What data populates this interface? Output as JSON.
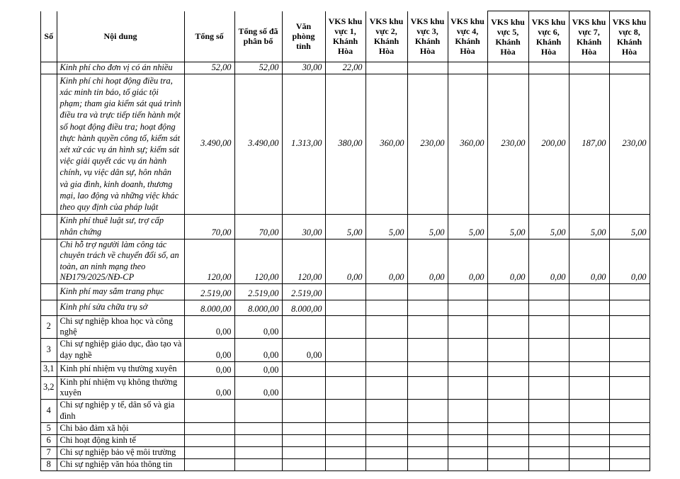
{
  "table": {
    "columns": [
      {
        "key": "so",
        "label": "Số"
      },
      {
        "key": "noi-dung",
        "label": "Nội dung"
      },
      {
        "key": "tong-so",
        "label": "Tổng số"
      },
      {
        "key": "tong-so-da-phan-bo",
        "label": "Tổng số đã\nphân bổ"
      },
      {
        "key": "van-phong-tinh",
        "label": "Văn phòng\ntỉnh"
      },
      {
        "key": "vks-khu-vuc-1",
        "label": "VKS khu\nvực 1,\nKhánh\nHòa"
      },
      {
        "key": "vks-khu-vuc-2",
        "label": "VKS khu\nvực 2,\nKhánh\nHòa"
      },
      {
        "key": "vks-khu-vuc-3",
        "label": "VKS khu\nvực 3,\nKhánh\nHòa"
      },
      {
        "key": "vks-khu-vuc-4",
        "label": "VKS khu\nvực 4,\nKhánh Hòa"
      },
      {
        "key": "vks-khu-vuc-5",
        "label": "VKS khu\nvực 5,\nKhánh\nHòa"
      },
      {
        "key": "vks-khu-vuc-6",
        "label": "VKS khu\nvực 6,\nKhánh\nHòa"
      },
      {
        "key": "vks-khu-vuc-7",
        "label": "VKS khu\nvực 7,\nKhánh\nHòa"
      },
      {
        "key": "vks-khu-vuc-8",
        "label": "VKS khu\nvực 8,\nKhánh\nHòa"
      }
    ],
    "rows": [
      {
        "so": "",
        "content": "Kinh phí cho đơn vị có án nhiều",
        "values": [
          "52,00",
          "52,00",
          "30,00",
          "22,00",
          "",
          "",
          "",
          "",
          "",
          "",
          ""
        ]
      },
      {
        "so": "",
        "content": "Kinh phí chi hoạt động điều tra, xác minh tin báo, tố giác tội phạm; tham gia kiểm sát quá trình điều tra và trực tiếp tiến hành một số hoạt động điều tra; hoạt động thực hành quyền công tố, kiểm sát xét xử các vụ án hình sự; kiểm sát việc giải quyết các vụ án hành chính, vụ việc dân sự, hôn nhân và gia đình, kinh doanh, thương mại, lao động và những việc khác theo quy định của pháp luật",
        "values": [
          "3.490,00",
          "3.490,00",
          "1.313,00",
          "380,00",
          "360,00",
          "230,00",
          "360,00",
          "230,00",
          "200,00",
          "187,00",
          "230,00"
        ]
      },
      {
        "so": "",
        "content": "Kinh phí thuê luật sư, trợ cấp nhân chứng",
        "values": [
          "70,00",
          "70,00",
          "30,00",
          "5,00",
          "5,00",
          "5,00",
          "5,00",
          "5,00",
          "5,00",
          "5,00",
          "5,00"
        ]
      },
      {
        "so": "",
        "content": "Chi hỗ trợ người làm công tác chuyên trách về chuyển đổi số, an toàn, an ninh mạng theo NĐ179/2025/NĐ-CP",
        "values": [
          "120,00",
          "120,00",
          "120,00",
          "0,00",
          "0,00",
          "0,00",
          "0,00",
          "0,00",
          "0,00",
          "0,00",
          "0,00"
        ]
      },
      {
        "so": "",
        "content": "Kinh phí may sắm trang phục",
        "values": [
          "2.519,00",
          "2.519,00",
          "2.519,00",
          "",
          "",
          "",
          "",
          "",
          "",
          "",
          ""
        ]
      },
      {
        "so": "",
        "content": "Kinh phí sửa chữa trụ sở",
        "values": [
          "8.000,00",
          "8.000,00",
          "8.000,00",
          "",
          "",
          "",
          "",
          "",
          "",
          "",
          ""
        ]
      },
      {
        "so": "2",
        "content": "Chi sự nghiệp khoa học và công nghệ",
        "values": [
          "0,00",
          "0,00",
          "",
          "",
          "",
          "",
          "",
          "",
          "",
          "",
          ""
        ]
      },
      {
        "so": "3",
        "content": "Chi sự nghiệp giáo dục, đào tạo và dạy nghề",
        "values": [
          "0,00",
          "0,00",
          "0,00",
          "",
          "",
          "",
          "",
          "",
          "",
          "",
          ""
        ]
      },
      {
        "so": "3,1",
        "content": "Kinh phí nhiệm vụ thường xuyên",
        "values": [
          "0,00",
          "0,00",
          "",
          "",
          "",
          "",
          "",
          "",
          "",
          "",
          ""
        ]
      },
      {
        "so": "3,2",
        "content": "Kinh phí nhiệm vụ không thường xuyên",
        "values": [
          "0,00",
          "0,00",
          "",
          "",
          "",
          "",
          "",
          "",
          "",
          "",
          ""
        ]
      },
      {
        "so": "4",
        "content": "Chi sự nghiệp y tế, dân số và gia đình",
        "values": [
          "",
          "",
          "",
          "",
          "",
          "",
          "",
          "",
          "",
          "",
          ""
        ]
      },
      {
        "so": "5",
        "content": "Chi bảo đảm xã hội",
        "values": [
          "",
          "",
          "",
          "",
          "",
          "",
          "",
          "",
          "",
          "",
          ""
        ]
      },
      {
        "so": "6",
        "content": "Chi hoạt động kinh tế",
        "values": [
          "",
          "",
          "",
          "",
          "",
          "",
          "",
          "",
          "",
          "",
          ""
        ]
      },
      {
        "so": "7",
        "content": "Chi sự nghiệp bảo vệ môi trường",
        "values": [
          "",
          "",
          "",
          "",
          "",
          "",
          "",
          "",
          "",
          "",
          ""
        ]
      },
      {
        "so": "8",
        "content": "Chi sự nghiệp văn hóa thông tin",
        "values": [
          "",
          "",
          "",
          "",
          "",
          "",
          "",
          "",
          "",
          "",
          ""
        ]
      }
    ]
  }
}
